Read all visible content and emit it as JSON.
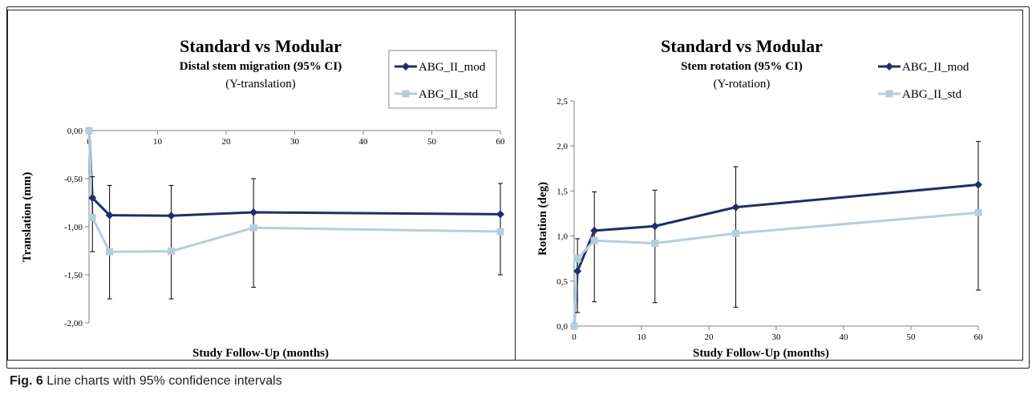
{
  "caption": {
    "label": "Fig. 6",
    "text": "Line charts with 95% confidence intervals"
  },
  "colors": {
    "mod": "#1f2d6b",
    "std": "#b4cfdc",
    "error_bar": "#000000",
    "axis": "#7f7f7f"
  },
  "chart_data": [
    {
      "type": "line",
      "title": "Standard vs Modular",
      "subtitle": "Distal stem migration (95% CI)",
      "subtitle2": "(Y-translation)",
      "xlabel": "Study Follow-Up (months)",
      "ylabel": "Translation (mm)",
      "xlim": [
        0,
        60
      ],
      "ylim": [
        -2.0,
        0.0
      ],
      "xticks": [
        0,
        10,
        20,
        30,
        40,
        50,
        60
      ],
      "xtick_labels": [
        "0",
        "10",
        "20",
        "30",
        "40",
        "50",
        "60"
      ],
      "yticks": [
        0.0,
        -0.5,
        -1.0,
        -1.5,
        -2.0
      ],
      "ytick_labels": [
        "0,00",
        "-0,50",
        "-1,00",
        "-1,50",
        "-2,00"
      ],
      "x_axis_at": "top",
      "grid": false,
      "legend_position": "top-right",
      "series": [
        {
          "name": "ABG_II_mod",
          "marker": "diamond",
          "x": [
            0,
            0.5,
            3,
            12,
            24,
            60
          ],
          "y": [
            0,
            -0.7,
            -0.88,
            -0.885,
            -0.85,
            -0.87
          ]
        },
        {
          "name": "ABG_II_std",
          "marker": "square",
          "x": [
            0,
            0.5,
            3,
            12,
            24,
            60
          ],
          "y": [
            0,
            -0.905,
            -1.26,
            -1.255,
            -1.01,
            -1.05
          ]
        }
      ],
      "error_bars": [
        {
          "x": 0.5,
          "low": -1.26,
          "high": -0.48
        },
        {
          "x": 3,
          "low": -1.75,
          "high": -0.57
        },
        {
          "x": 12,
          "low": -1.75,
          "high": -0.57
        },
        {
          "x": 24,
          "low": -1.63,
          "high": -0.5
        },
        {
          "x": 60,
          "low": -1.5,
          "high": -0.55
        }
      ]
    },
    {
      "type": "line",
      "title": "Standard vs Modular",
      "subtitle": "Stem rotation (95% CI)",
      "subtitle2": "(Y-rotation)",
      "xlabel": "Study Follow-Up (months)",
      "ylabel": "Rotation (deg)",
      "xlim": [
        0,
        60
      ],
      "ylim": [
        0.0,
        2.5
      ],
      "xticks": [
        0,
        10,
        20,
        30,
        40,
        50,
        60
      ],
      "xtick_labels": [
        "0",
        "10",
        "20",
        "30",
        "40",
        "50",
        "60"
      ],
      "yticks": [
        0.0,
        0.5,
        1.0,
        1.5,
        2.0,
        2.5
      ],
      "ytick_labels": [
        "0,0",
        "0,5",
        "1,0",
        "1,5",
        "2,0",
        "2,5"
      ],
      "x_axis_at": "bottom",
      "grid": false,
      "legend_position": "top-right",
      "series": [
        {
          "name": "ABG_II_mod",
          "marker": "diamond",
          "x": [
            0,
            0.5,
            3,
            12,
            24,
            60
          ],
          "y": [
            0,
            0.61,
            1.06,
            1.11,
            1.32,
            1.57
          ]
        },
        {
          "name": "ABG_II_std",
          "marker": "square",
          "x": [
            0,
            0.5,
            3,
            12,
            24,
            60
          ],
          "y": [
            0,
            0.75,
            0.95,
            0.92,
            1.03,
            1.26
          ]
        }
      ],
      "error_bars": [
        {
          "x": 0.5,
          "low": 0.15,
          "high": 0.97
        },
        {
          "x": 3,
          "low": 0.27,
          "high": 1.49
        },
        {
          "x": 12,
          "low": 0.26,
          "high": 1.51
        },
        {
          "x": 24,
          "low": 0.21,
          "high": 1.77
        },
        {
          "x": 60,
          "low": 0.4,
          "high": 2.05
        }
      ]
    }
  ]
}
